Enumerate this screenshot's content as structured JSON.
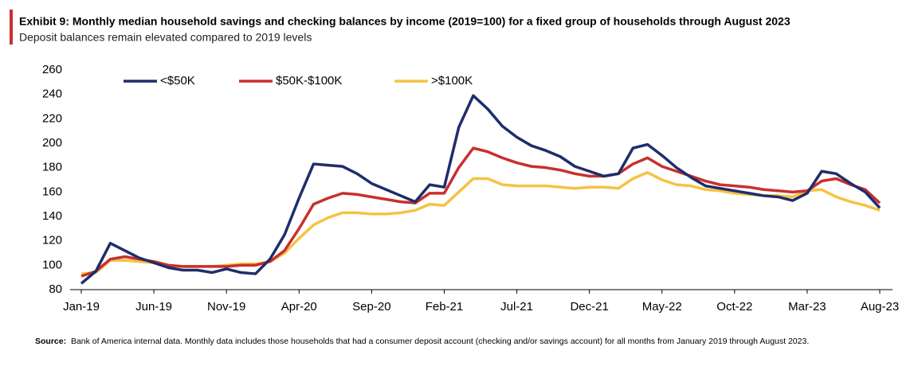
{
  "chart_data": {
    "type": "line",
    "title": "Exhibit 9: Monthly median household savings and checking balances by income (2019=100)  for a fixed group of households through August 2023",
    "subtitle": "Deposit balances remain elevated compared to 2019 levels",
    "categories": [
      "Jan-19",
      null,
      null,
      null,
      null,
      "Jun-19",
      null,
      null,
      null,
      null,
      "Nov-19",
      null,
      null,
      null,
      null,
      "Apr-20",
      null,
      null,
      null,
      null,
      "Sep-20",
      null,
      null,
      null,
      null,
      "Feb-21",
      null,
      null,
      null,
      null,
      "Jul-21",
      null,
      null,
      null,
      null,
      "Dec-21",
      null,
      null,
      null,
      null,
      "May-22",
      null,
      null,
      null,
      null,
      "Oct-22",
      null,
      null,
      null,
      null,
      "Mar-23",
      null,
      null,
      null,
      null,
      "Aug-23"
    ],
    "series": [
      {
        "name": "<$50K",
        "color": "#1f2d6b",
        "values": [
          85,
          95,
          118,
          112,
          106,
          102,
          98,
          96,
          96,
          94,
          97,
          94,
          93,
          105,
          125,
          155,
          183,
          182,
          181,
          175,
          167,
          162,
          157,
          152,
          166,
          164,
          213,
          239,
          228,
          214,
          205,
          198,
          194,
          189,
          181,
          177,
          173,
          175,
          196,
          199,
          190,
          180,
          172,
          165,
          163,
          161,
          159,
          157,
          156,
          153,
          159,
          177,
          175,
          167,
          160,
          147
        ]
      },
      {
        "name": "$50K-$100K",
        "color": "#c8302f",
        "values": [
          91,
          95,
          105,
          107,
          105,
          103,
          100,
          99,
          99,
          99,
          99,
          100,
          100,
          103,
          112,
          130,
          150,
          155,
          159,
          158,
          156,
          154,
          152,
          151,
          159,
          159,
          180,
          196,
          193,
          188,
          184,
          181,
          180,
          178,
          175,
          173,
          173,
          175,
          183,
          188,
          181,
          177,
          173,
          169,
          166,
          165,
          164,
          162,
          161,
          160,
          161,
          169,
          171,
          166,
          162,
          151
        ]
      },
      {
        "name": ">$100K",
        "color": "#f5c342",
        "values": [
          93,
          94,
          104,
          104,
          103,
          102,
          100,
          99,
          99,
          99,
          100,
          101,
          101,
          103,
          110,
          122,
          133,
          139,
          143,
          143,
          142,
          142,
          143,
          145,
          150,
          149,
          160,
          171,
          171,
          166,
          165,
          165,
          165,
          164,
          163,
          164,
          164,
          163,
          171,
          176,
          170,
          166,
          165,
          162,
          161,
          159,
          158,
          157,
          157,
          156,
          161,
          162,
          156,
          152,
          149,
          145
        ]
      }
    ],
    "ylim": [
      80,
      260
    ],
    "yticks": [
      80,
      100,
      120,
      140,
      160,
      180,
      200,
      220,
      240,
      260
    ],
    "grid": false,
    "legend": "top",
    "source_label": "Source:",
    "source_text": "Bank of America internal data. Monthly data includes those households  that had a consumer  deposit account  (checking  and/or savings account)  for all months from January 2019 through August 2023."
  }
}
